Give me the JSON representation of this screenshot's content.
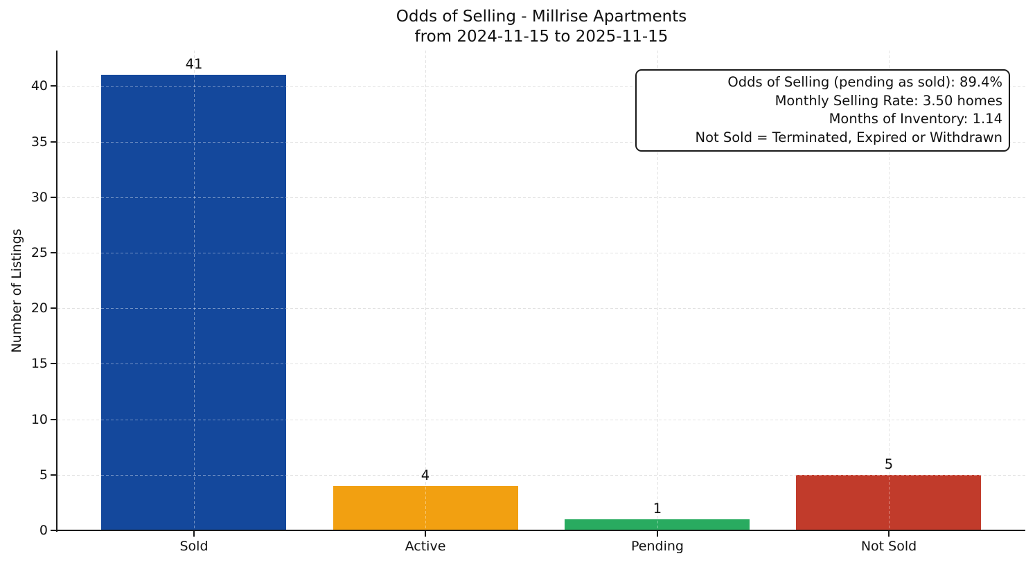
{
  "chart_data": {
    "type": "bar",
    "title_lines": [
      "Odds of Selling - Millrise Apartments",
      "from 2024-11-15 to 2025-11-15"
    ],
    "categories": [
      "Sold",
      "Active",
      "Pending",
      "Not Sold"
    ],
    "values": [
      41,
      4,
      1,
      5
    ],
    "bar_value_labels": [
      "41",
      "4",
      "1",
      "5"
    ],
    "bar_colors": [
      "#14489c",
      "#f2a011",
      "#29ab60",
      "#c13b2b"
    ],
    "xlabel": "",
    "ylabel": "Number of Listings",
    "ylim": [
      0,
      43.2
    ],
    "yticks": [
      0,
      5,
      10,
      15,
      20,
      25,
      30,
      35,
      40
    ],
    "grid": true,
    "grid_style": "dashed",
    "bar_relative_width": 0.8,
    "annotation_box": {
      "position": "top-right",
      "text_align": "right",
      "lines": [
        "Odds of Selling (pending as sold): 89.4%",
        "Monthly Selling Rate: 3.50 homes",
        "Months of Inventory: 1.14",
        "Not Sold = Terminated, Expired or Withdrawn"
      ]
    }
  }
}
